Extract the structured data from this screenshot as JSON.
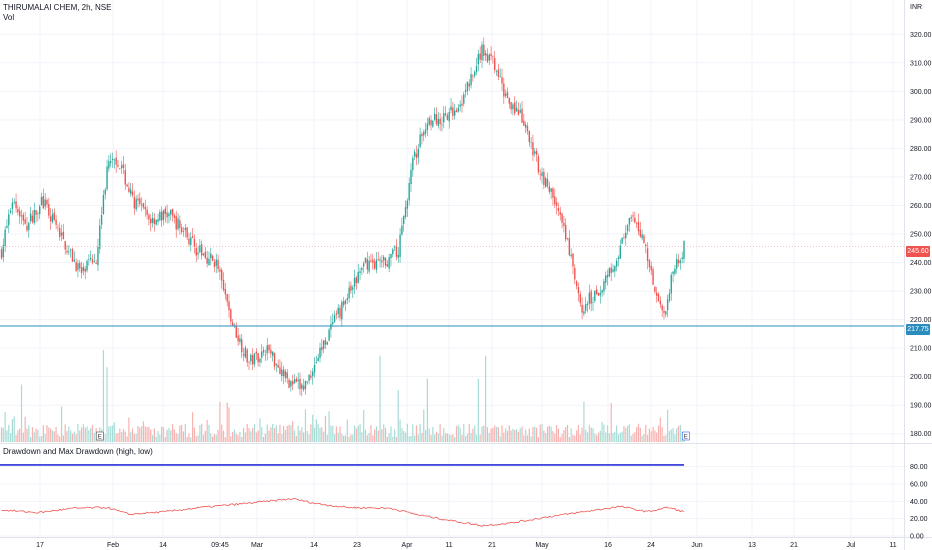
{
  "legend": {
    "symbol_line": "THIRUMALAI CHEM, 2h, NSE",
    "volume_label": "Vol",
    "indicator_label": "Drawdown and Max Drawdown (high, low)"
  },
  "currency": "INR",
  "price_tag": "245.60",
  "support_tag": "217.75",
  "event_markers": [
    "E",
    "E"
  ],
  "colors": {
    "up": "#26a69a",
    "down": "#ef5350",
    "up_volume": "#a7dcd6",
    "down_volume": "#f7b1af",
    "support_line": "#2b8cbe",
    "drawdown_line": "#ef5350",
    "max_drawdown_line": "#2c30d6",
    "grid": "#f0f3fa"
  },
  "chart_data": [
    {
      "type": "candlestick",
      "title": "",
      "ylim": [
        175,
        325
      ],
      "yticks": [
        180,
        190,
        200,
        210,
        220,
        230,
        240,
        250,
        260,
        270,
        280,
        290,
        300,
        310,
        320
      ],
      "ytick_labels": [
        "180.00",
        "190.00",
        "200.00",
        "210.00",
        "220.00",
        "230.00",
        "240.00",
        "250.00",
        "260.00",
        "270.00",
        "280.00",
        "290.00",
        "300.00",
        "310.00",
        "320.00"
      ],
      "xticks": [
        "17",
        "Feb",
        "14",
        "09:45",
        "Mar",
        "14",
        "23",
        "Apr",
        "11",
        "21",
        "May",
        "16",
        "24",
        "Jun",
        "13",
        "21",
        "Jul",
        "11"
      ],
      "last_price": 245.6,
      "support_level": 217.75,
      "anchors": [
        [
          0,
          244
        ],
        [
          6,
          262
        ],
        [
          14,
          253
        ],
        [
          22,
          262
        ],
        [
          32,
          250
        ],
        [
          44,
          236
        ],
        [
          52,
          242
        ],
        [
          58,
          273
        ],
        [
          64,
          276
        ],
        [
          72,
          262
        ],
        [
          82,
          255
        ],
        [
          92,
          257
        ],
        [
          100,
          251
        ],
        [
          108,
          244
        ],
        [
          118,
          240
        ],
        [
          126,
          220
        ],
        [
          136,
          205
        ],
        [
          146,
          210
        ],
        [
          158,
          198
        ],
        [
          166,
          196
        ],
        [
          178,
          213
        ],
        [
          190,
          228
        ],
        [
          200,
          240
        ],
        [
          210,
          240
        ],
        [
          218,
          244
        ],
        [
          226,
          275
        ],
        [
          234,
          290
        ],
        [
          244,
          290
        ],
        [
          254,
          298
        ],
        [
          264,
          314
        ],
        [
          270,
          310
        ],
        [
          276,
          300
        ],
        [
          286,
          290
        ],
        [
          296,
          272
        ],
        [
          304,
          262
        ],
        [
          312,
          244
        ],
        [
          318,
          224
        ],
        [
          328,
          230
        ],
        [
          338,
          242
        ],
        [
          346,
          255
        ],
        [
          352,
          250
        ],
        [
          358,
          234
        ],
        [
          364,
          220
        ],
        [
          370,
          240
        ],
        [
          375,
          245
        ]
      ],
      "volume": {
        "spikes": [
          [
            11,
            0.5
          ],
          [
            56,
            0.8
          ],
          [
            58,
            0.65
          ],
          [
            120,
            0.35
          ],
          [
            208,
            0.75
          ],
          [
            218,
            0.45
          ],
          [
            234,
            0.55
          ],
          [
            262,
            0.55
          ],
          [
            266,
            0.75
          ],
          [
            320,
            0.35
          ],
          [
            366,
            0.28
          ]
        ]
      }
    },
    {
      "type": "line",
      "series_name": "",
      "ylim": [
        0,
        90
      ],
      "yticks": [
        0,
        20,
        40,
        60,
        80
      ],
      "ytick_labels": [
        "0.00",
        "20.00",
        "40.00",
        "60.00",
        "80.00"
      ],
      "max_drawdown_level": 82,
      "drawdown_anchors": [
        [
          0,
          30
        ],
        [
          20,
          27
        ],
        [
          40,
          32
        ],
        [
          58,
          33
        ],
        [
          70,
          25
        ],
        [
          90,
          28
        ],
        [
          110,
          33
        ],
        [
          126,
          36
        ],
        [
          146,
          40
        ],
        [
          160,
          43
        ],
        [
          174,
          37
        ],
        [
          190,
          33
        ],
        [
          214,
          32
        ],
        [
          230,
          24
        ],
        [
          252,
          16
        ],
        [
          264,
          12
        ],
        [
          280,
          15
        ],
        [
          300,
          22
        ],
        [
          320,
          28
        ],
        [
          340,
          34
        ],
        [
          355,
          28
        ],
        [
          366,
          33
        ],
        [
          375,
          28
        ]
      ]
    }
  ]
}
